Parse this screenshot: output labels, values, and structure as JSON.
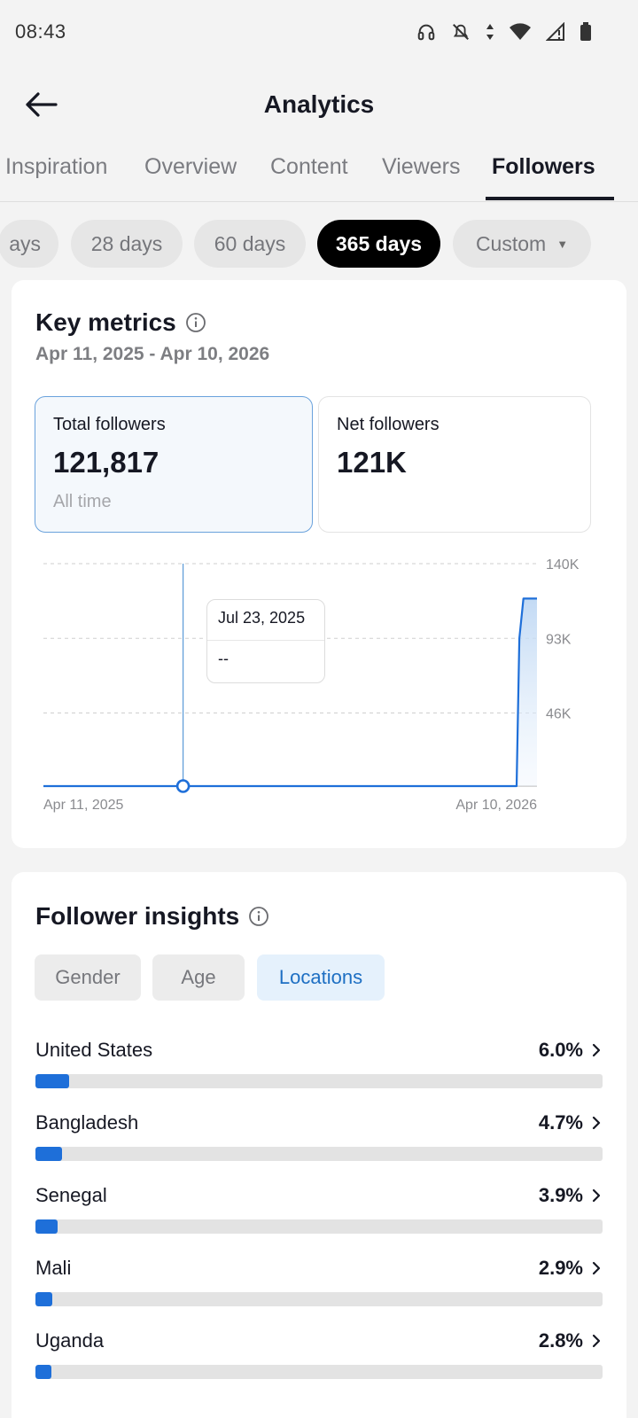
{
  "status_bar": {
    "time": "08:43",
    "icons": [
      "headphones-icon",
      "mute-icon",
      "data-arrows-icon",
      "wifi-icon",
      "signal-icon",
      "battery-icon"
    ]
  },
  "header": {
    "title": "Analytics",
    "back_icon": "arrow-left-icon"
  },
  "tabs": [
    {
      "label": "Inspiration"
    },
    {
      "label": "Overview"
    },
    {
      "label": "Content"
    },
    {
      "label": "Viewers"
    },
    {
      "label": "Followers",
      "active": true
    }
  ],
  "ranges": [
    {
      "label": "ays"
    },
    {
      "label": "28 days"
    },
    {
      "label": "60 days"
    },
    {
      "label": "365 days",
      "active": true
    },
    {
      "label": "Custom"
    }
  ],
  "key_metrics": {
    "title": "Key metrics",
    "date_range": "Apr 11, 2025 - Apr 10, 2026",
    "total": {
      "label": "Total followers",
      "value": "121,817",
      "sub": "All time"
    },
    "net": {
      "label": "Net followers",
      "value": "121K"
    }
  },
  "chart_data": {
    "type": "area",
    "x": [
      "Apr 11, 2025",
      "Jul 23, 2025",
      "Mar 26, 2026",
      "Mar 28, 2026",
      "Mar 31, 2026",
      "Apr 10, 2026"
    ],
    "y": [
      0,
      0,
      0,
      93000,
      118000,
      118000
    ],
    "y_ticks": [
      "140K",
      "93K",
      "46K"
    ],
    "x_tick_labels": [
      "Apr 11, 2025",
      "Apr 10, 2026"
    ],
    "ylim": [
      0,
      140000
    ],
    "grid": true,
    "accent": "#1e6fd9",
    "tooltip": {
      "date": "Jul 23, 2025",
      "value": "--"
    }
  },
  "insights": {
    "title": "Follower insights",
    "segments": [
      {
        "label": "Gender"
      },
      {
        "label": "Age"
      },
      {
        "label": "Locations",
        "active": true
      }
    ],
    "locations": [
      {
        "name": "United States",
        "pct": "6.0%",
        "value": 6.0
      },
      {
        "name": "Bangladesh",
        "pct": "4.7%",
        "value": 4.7
      },
      {
        "name": "Senegal",
        "pct": "3.9%",
        "value": 3.9
      },
      {
        "name": "Mali",
        "pct": "2.9%",
        "value": 2.9
      },
      {
        "name": "Uganda",
        "pct": "2.8%",
        "value": 2.8
      }
    ]
  }
}
